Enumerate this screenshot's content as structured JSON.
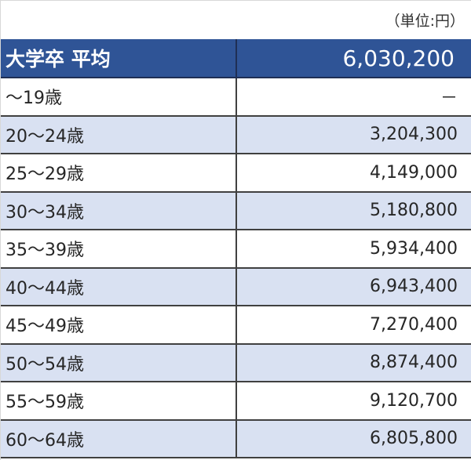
{
  "unit_label": "（単位:円）",
  "table": {
    "header": {
      "label": "大学卒 平均",
      "value": "6,030,200"
    },
    "rows": [
      {
        "label": "～19歳",
        "value": "－"
      },
      {
        "label": "20～24歳",
        "value": "3,204,300"
      },
      {
        "label": "25～29歳",
        "value": "4,149,000"
      },
      {
        "label": "30～34歳",
        "value": "5,180,800"
      },
      {
        "label": "35～39歳",
        "value": "5,934,400"
      },
      {
        "label": "40～44歳",
        "value": "6,943,400"
      },
      {
        "label": "45～49歳",
        "value": "7,270,400"
      },
      {
        "label": "50～54歳",
        "value": "8,874,400"
      },
      {
        "label": "55～59歳",
        "value": "9,120,700"
      },
      {
        "label": "60～64歳",
        "value": "6,805,800"
      }
    ]
  },
  "colors": {
    "header_bg": "#2f5496",
    "alt_row_bg": "#d9e1f2",
    "border": "#404040"
  }
}
